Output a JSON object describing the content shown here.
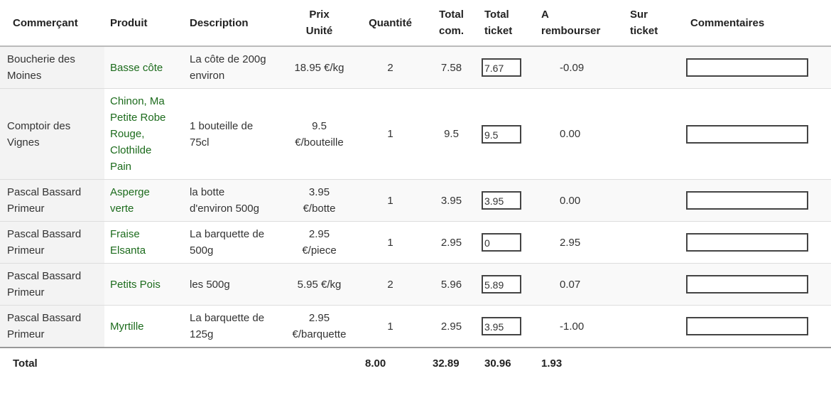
{
  "headers": {
    "merchant": "Commerçant",
    "product": "Produit",
    "description": "Description",
    "unit_price_line1": "Prix",
    "unit_price_line2": "Unité",
    "quantity": "Quantité",
    "total_order_line1": "Total",
    "total_order_line2": "com.",
    "total_ticket_line1": "Total",
    "total_ticket_line2": "ticket",
    "refund_line1": "A",
    "refund_line2": "rembourser",
    "on_ticket_line1": "Sur",
    "on_ticket_line2": "ticket",
    "comments": "Commentaires"
  },
  "rows": [
    {
      "merchant": [
        "Boucherie des",
        "Moines"
      ],
      "product": [
        "Basse côte"
      ],
      "description": [
        "La côte de 200g",
        "environ"
      ],
      "unit_price": [
        "18.95 €/kg"
      ],
      "quantity": "2",
      "total_order": "7.58",
      "total_ticket": "7.67",
      "refund": "-0.09",
      "on_ticket": "",
      "comment": ""
    },
    {
      "merchant": [
        "Comptoir des",
        "Vignes"
      ],
      "product": [
        "Chinon, Ma",
        "Petite Robe",
        "Rouge,",
        "Clothilde",
        "Pain"
      ],
      "description": [
        "1 bouteille de",
        "75cl"
      ],
      "unit_price": [
        "9.5",
        "€/bouteille"
      ],
      "quantity": "1",
      "total_order": "9.5",
      "total_ticket": "9.5",
      "refund": "0.00",
      "on_ticket": "",
      "comment": ""
    },
    {
      "merchant": [
        "Pascal Bassard",
        "Primeur"
      ],
      "product": [
        "Asperge",
        "verte"
      ],
      "description": [
        "la botte",
        "d'environ 500g"
      ],
      "unit_price": [
        "3.95",
        "€/botte"
      ],
      "quantity": "1",
      "total_order": "3.95",
      "total_ticket": "3.95",
      "refund": "0.00",
      "on_ticket": "",
      "comment": ""
    },
    {
      "merchant": [
        "Pascal Bassard",
        "Primeur"
      ],
      "product": [
        "Fraise",
        "Elsanta"
      ],
      "description": [
        "La barquette de",
        "500g"
      ],
      "unit_price": [
        "2.95",
        "€/piece"
      ],
      "quantity": "1",
      "total_order": "2.95",
      "total_ticket": "0",
      "refund": "2.95",
      "on_ticket": "",
      "comment": ""
    },
    {
      "merchant": [
        "Pascal Bassard",
        "Primeur"
      ],
      "product": [
        "Petits Pois"
      ],
      "description": [
        "les 500g"
      ],
      "unit_price": [
        "5.95 €/kg"
      ],
      "quantity": "2",
      "total_order": "5.96",
      "total_ticket": "5.89",
      "refund": "0.07",
      "on_ticket": "",
      "comment": ""
    },
    {
      "merchant": [
        "Pascal Bassard",
        "Primeur"
      ],
      "product": [
        "Myrtille"
      ],
      "description": [
        "La barquette de",
        "125g"
      ],
      "unit_price": [
        "2.95",
        "€/barquette"
      ],
      "quantity": "1",
      "total_order": "2.95",
      "total_ticket": "3.95",
      "refund": "-1.00",
      "on_ticket": "",
      "comment": ""
    }
  ],
  "totals": {
    "label": "Total",
    "quantity": "8.00",
    "total_order": "32.89",
    "total_ticket": "30.96",
    "refund": "1.93"
  }
}
